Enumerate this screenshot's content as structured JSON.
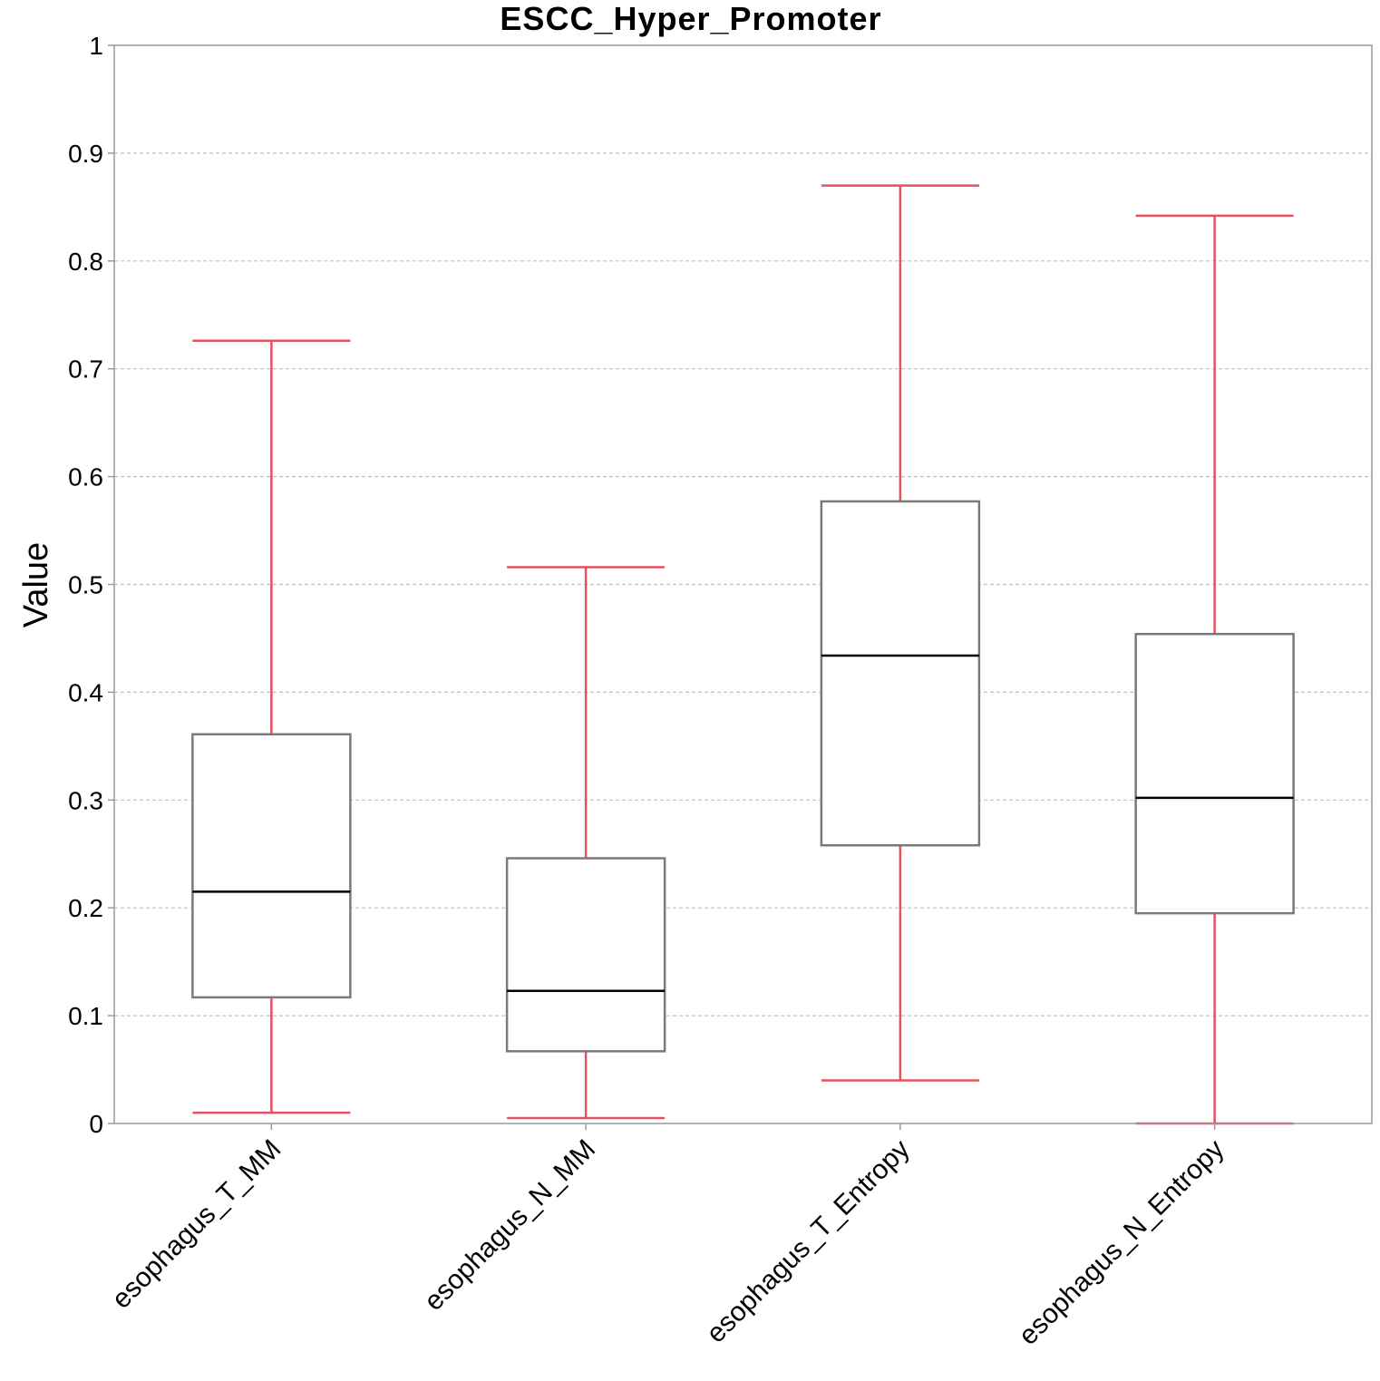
{
  "chart_data": {
    "type": "box",
    "title": "ESCC_Hyper_Promoter",
    "xlabel": "",
    "ylabel": "Value",
    "ylim": [
      0,
      1
    ],
    "yticks": [
      0,
      0.1,
      0.2,
      0.3,
      0.4,
      0.5,
      0.6,
      0.7,
      0.8,
      0.9,
      1
    ],
    "ytick_labels": [
      "0",
      "0.1",
      "0.2",
      "0.3",
      "0.4",
      "0.5",
      "0.6",
      "0.7",
      "0.8",
      "0.9",
      "1"
    ],
    "grid": "horizontal-dashed",
    "categories": [
      "esophagus_T_MM",
      "esophagus_N_MM",
      "esophagus_T_Entropy",
      "esophagus_N_Entropy"
    ],
    "boxes": [
      {
        "category": "esophagus_T_MM",
        "whisker_low": 0.01,
        "q1": 0.117,
        "median": 0.215,
        "q3": 0.361,
        "whisker_high": 0.726
      },
      {
        "category": "esophagus_N_MM",
        "whisker_low": 0.005,
        "q1": 0.067,
        "median": 0.123,
        "q3": 0.246,
        "whisker_high": 0.516
      },
      {
        "category": "esophagus_T_Entropy",
        "whisker_low": 0.04,
        "q1": 0.258,
        "median": 0.434,
        "q3": 0.577,
        "whisker_high": 0.87
      },
      {
        "category": "esophagus_N_Entropy",
        "whisker_low": 0.0,
        "q1": 0.195,
        "median": 0.302,
        "q3": 0.454,
        "whisker_high": 0.842
      }
    ],
    "colors": {
      "whisker": "#e8505b",
      "box": "#7a7a7a",
      "median": "#000000",
      "grid": "#c0c0c0",
      "frame": "#999999"
    }
  }
}
